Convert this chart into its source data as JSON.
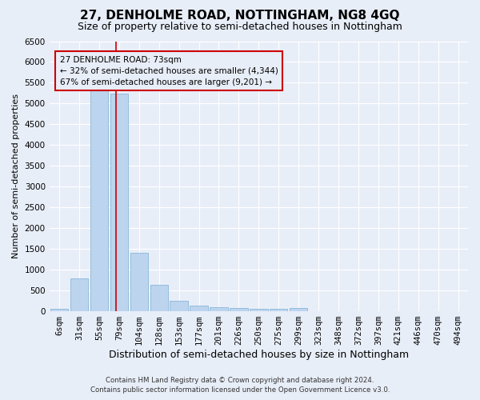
{
  "title": "27, DENHOLME ROAD, NOTTINGHAM, NG8 4GQ",
  "subtitle": "Size of property relative to semi-detached houses in Nottingham",
  "xlabel": "Distribution of semi-detached houses by size in Nottingham",
  "ylabel": "Number of semi-detached properties",
  "categories": [
    "6sqm",
    "31sqm",
    "55sqm",
    "79sqm",
    "104sqm",
    "128sqm",
    "153sqm",
    "177sqm",
    "201sqm",
    "226sqm",
    "250sqm",
    "275sqm",
    "299sqm",
    "323sqm",
    "348sqm",
    "372sqm",
    "397sqm",
    "421sqm",
    "446sqm",
    "470sqm",
    "494sqm"
  ],
  "values": [
    50,
    790,
    5310,
    5240,
    1410,
    635,
    260,
    130,
    100,
    70,
    60,
    55,
    75,
    0,
    0,
    0,
    0,
    0,
    0,
    0,
    0
  ],
  "bar_color": "#bdd4ee",
  "bar_edge_color": "#7aafd4",
  "vline_color": "#cc0000",
  "annotation_box_color": "#cc0000",
  "ylim_max": 6500,
  "yticks": [
    0,
    500,
    1000,
    1500,
    2000,
    2500,
    3000,
    3500,
    4000,
    4500,
    5000,
    5500,
    6000,
    6500
  ],
  "title_fontsize": 11,
  "subtitle_fontsize": 9,
  "xlabel_fontsize": 9,
  "ylabel_fontsize": 8,
  "tick_fontsize": 7.5,
  "annot_fontsize": 7.5,
  "footer_line1": "Contains HM Land Registry data © Crown copyright and database right 2024.",
  "footer_line2": "Contains public sector information licensed under the Open Government Licence v3.0.",
  "background_color": "#e8eef8",
  "grid_color": "#ffffff"
}
